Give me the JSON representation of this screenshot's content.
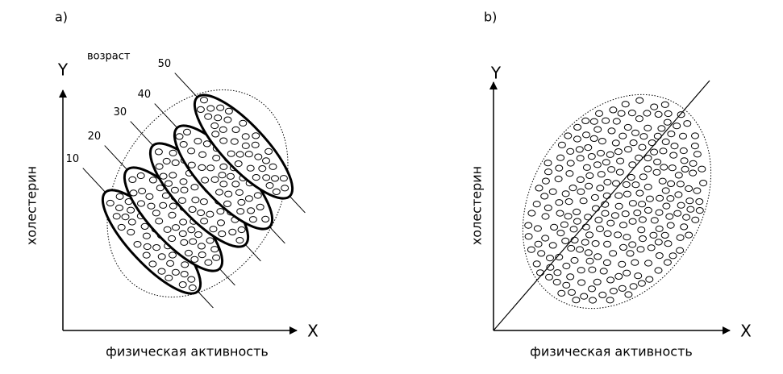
{
  "panels": [
    {
      "label": "a)",
      "y_axis": "Y",
      "x_axis": "X",
      "y_label": "холестерин",
      "x_label": "физическая активность",
      "group_title": "возраст",
      "groups": [
        "10",
        "20",
        "30",
        "40",
        "50"
      ]
    },
    {
      "label": "b)",
      "y_axis": "Y",
      "x_axis": "X",
      "y_label": "холестерин",
      "x_label": "физическая активность"
    }
  ]
}
